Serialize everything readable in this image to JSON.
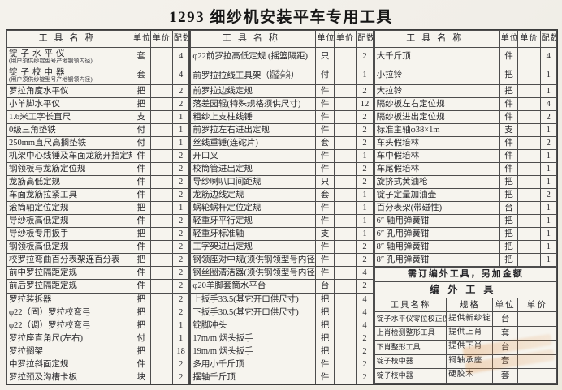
{
  "title": "1293 细纱机安装平车专用工具",
  "columns": {
    "name": "工具名称",
    "unit": "单位",
    "price": "单价",
    "qty": "配数"
  },
  "groups": [
    {
      "rows": [
        {
          "n": "锭子水平仪",
          "s": "(用户须供纱锭型号产地钢领内径)",
          "u": "套",
          "p": "",
          "q": "4"
        },
        {
          "n": "锭子校中器",
          "s": "(用户须供纱锭型号产地钢领内径)",
          "u": "套",
          "p": "",
          "q": "4"
        },
        {
          "n": "罗拉角度水平仪",
          "u": "把",
          "p": "",
          "q": "2"
        },
        {
          "n": "小羊脚水平仪",
          "u": "把",
          "p": "",
          "q": "2"
        },
        {
          "n": "1.6米工字长直尺",
          "u": "支",
          "p": "",
          "q": "1"
        },
        {
          "n": "0级三角垫铁",
          "u": "付",
          "p": "",
          "q": "1"
        },
        {
          "n": "250mm直尺高搁垫铁",
          "u": "付",
          "p": "",
          "q": "1"
        },
        {
          "n": "机架中心线锤及车面龙筋开挡定规",
          "u": "件",
          "p": "",
          "q": "2"
        },
        {
          "n": "钢领板与龙筋定位规",
          "u": "件",
          "p": "",
          "q": "2"
        },
        {
          "n": "龙筋高低定规",
          "u": "件",
          "p": "",
          "q": "2"
        },
        {
          "n": "车面龙筋拉紧工具",
          "u": "件",
          "p": "",
          "q": "2"
        },
        {
          "n": "滚筒轴定位定规",
          "u": "把",
          "p": "",
          "q": "1"
        },
        {
          "n": "导纱板高低定规",
          "u": "件",
          "p": "",
          "q": "2"
        },
        {
          "n": "导纱板专用扳手",
          "u": "把",
          "p": "",
          "q": "2"
        },
        {
          "n": "钢领板高低定规",
          "u": "件",
          "p": "",
          "q": "2"
        },
        {
          "n": "校罗拉弯曲百分表架连百分表",
          "u": "把",
          "p": "",
          "q": "2"
        },
        {
          "n": "前中罗拉隔距定规",
          "u": "件",
          "p": "",
          "q": "2"
        },
        {
          "n": "前后罗拉隔距定规",
          "u": "件",
          "p": "",
          "q": "2"
        },
        {
          "n": "罗拉装拆器",
          "u": "把",
          "p": "",
          "q": "2"
        },
        {
          "n": "φ22（固）罗拉校弯弓",
          "u": "把",
          "p": "",
          "q": "2"
        },
        {
          "n": "φ22（调）罗拉校弯弓",
          "u": "把",
          "p": "",
          "q": "1"
        },
        {
          "n": "罗拉座直角尺(左右)",
          "u": "付",
          "p": "",
          "q": "1"
        },
        {
          "n": "罗拉搁架",
          "u": "把",
          "p": "",
          "q": "18"
        },
        {
          "n": "中罗拉斜面定规",
          "u": "件",
          "p": "",
          "q": "2"
        },
        {
          "n": "罗拉颈及沟槽卡板",
          "u": "块",
          "p": "",
          "q": "2"
        }
      ]
    },
    {
      "rows": [
        {
          "n": "φ22前罗拉高低定规 (摇篮隔距)",
          "u": "只",
          "p": "",
          "q": "2"
        },
        {
          "n": "前罗拉拉线工具架",
          "k": [
            "机头左右",
            "机尾左右"
          ],
          "u": "付",
          "p": "",
          "q": "1"
        },
        {
          "n": "前罗拉边线定规",
          "u": "件",
          "p": "",
          "q": "2"
        },
        {
          "n": "落差园辊(特殊规格须供尺寸)",
          "u": "件",
          "p": "",
          "q": "12"
        },
        {
          "n": "粗纱上支柱线锤",
          "u": "件",
          "p": "",
          "q": "2"
        },
        {
          "n": "前罗拉左右进出定规",
          "u": "件",
          "p": "",
          "q": "2"
        },
        {
          "n": "丝线重锤(连砣片)",
          "u": "套",
          "p": "",
          "q": "2"
        },
        {
          "n": "开口叉",
          "u": "件",
          "p": "",
          "q": "1"
        },
        {
          "n": "校筒管进出定规",
          "u": "件",
          "p": "",
          "q": "2"
        },
        {
          "n": "导纱喇叭口间距规",
          "u": "只",
          "p": "",
          "q": "2"
        },
        {
          "n": "龙筋边线定规",
          "u": "套",
          "p": "",
          "q": "1"
        },
        {
          "n": "蜗轮蜗杆定位定规",
          "u": "件",
          "p": "",
          "q": "1"
        },
        {
          "n": "轻重牙平行定规",
          "u": "件",
          "p": "",
          "q": "1"
        },
        {
          "n": "轻重牙标准轴",
          "u": "支",
          "p": "",
          "q": "1"
        },
        {
          "n": "工字架进出定规",
          "u": "件",
          "p": "",
          "q": "2"
        },
        {
          "n": "钢领座对中规(须供钢领型号内径)",
          "u": "件",
          "p": "",
          "q": "2"
        },
        {
          "n": "钢丝圈清洁器(须供钢领型号内径)",
          "u": "件",
          "p": "",
          "q": "4"
        },
        {
          "n": "φ20羊脚套筒水平台",
          "u": "台",
          "p": "",
          "q": "2"
        },
        {
          "n": "上扳手33.5(其它开口供尺寸)",
          "u": "把",
          "p": "",
          "q": "4"
        },
        {
          "n": "下扳手30.5(其它开口供尺寸)",
          "u": "把",
          "p": "",
          "q": "4"
        },
        {
          "n": "锭脚冲头",
          "u": "把",
          "p": "",
          "q": "4"
        },
        {
          "n": "17m/m 烟头扳手",
          "u": "把",
          "p": "",
          "q": "2"
        },
        {
          "n": "19m/m 烟头扳手",
          "u": "把",
          "p": "",
          "q": "2"
        },
        {
          "n": "多用小千斤顶",
          "u": "件",
          "p": "",
          "q": "2"
        },
        {
          "n": "摆轴千斤顶",
          "u": "件",
          "p": "",
          "q": "2"
        }
      ]
    },
    {
      "rows": [
        {
          "n": "大千斤顶",
          "u": "件",
          "p": "",
          "q": "4"
        },
        {
          "n": "小拉铃",
          "u": "把",
          "p": "",
          "q": "1"
        },
        {
          "n": "大拉铃",
          "u": "把",
          "p": "",
          "q": "1"
        },
        {
          "n": "隔纱板左右定位规",
          "u": "件",
          "p": "",
          "q": "4"
        },
        {
          "n": "隔纱板进出定位规",
          "u": "件",
          "p": "",
          "q": "2"
        },
        {
          "n": "标准主轴φ38×1m",
          "u": "支",
          "p": "",
          "q": "1"
        },
        {
          "n": "车头假培林",
          "u": "件",
          "p": "",
          "q": "2"
        },
        {
          "n": "车中假培林",
          "u": "件",
          "p": "",
          "q": "1"
        },
        {
          "n": "车尾假培林",
          "u": "件",
          "p": "",
          "q": "1"
        },
        {
          "n": "旋挤式黄油枪",
          "u": "把",
          "p": "",
          "q": "1"
        },
        {
          "n": "锭子定量加油壶",
          "u": "把",
          "p": "",
          "q": "2"
        },
        {
          "n": "百分表架(带磁性)",
          "u": "台",
          "p": "",
          "q": "1"
        },
        {
          "n": "6″ 轴用弹簧钳",
          "u": "把",
          "p": "",
          "q": "1"
        },
        {
          "n": "6″ 孔用弹簧钳",
          "u": "把",
          "p": "",
          "q": "1"
        },
        {
          "n": "8″ 轴用弹簧钳",
          "u": "把",
          "p": "",
          "q": "1"
        },
        {
          "n": "8″ 孔用弹簧钳",
          "u": "把",
          "p": "",
          "q": "1"
        }
      ],
      "note": "需订编外工具，另加金额",
      "extra": {
        "title": "编外工具",
        "headers": [
          "工具名称",
          "规格",
          "单位",
          "单价"
        ],
        "rows": [
          [
            "锭子水平仪零位校正仪",
            "提供新纱锭",
            "台",
            ""
          ],
          [
            "上肖检测整形工具",
            "提供上肖",
            "套",
            ""
          ],
          [
            "下肖整形工具",
            "提供下肖",
            "台",
            ""
          ],
          [
            "锭子校中器",
            "铜轴承座",
            "套",
            ""
          ],
          [
            "锭子校中器",
            "硬胶木",
            "套",
            ""
          ],
          [
            "",
            "",
            "",
            ""
          ]
        ]
      }
    }
  ]
}
